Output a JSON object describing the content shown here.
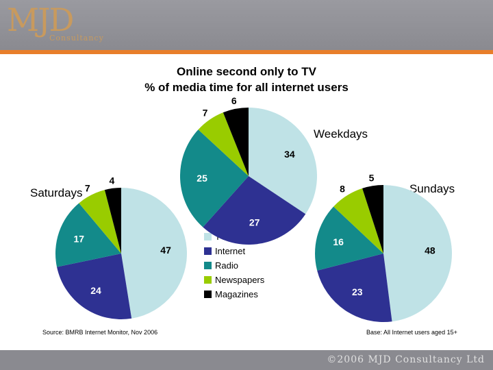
{
  "header": {
    "logo_main": "MJD",
    "logo_sub": "Consultancy"
  },
  "titles": {
    "line1": "Online second only to TV",
    "line2": "% of media time for all internet users"
  },
  "footnotes": {
    "source": "Source: BMRB Internet Monitor, Nov 2006",
    "base": "Base: All Internet users aged 15+"
  },
  "footer": {
    "copyright": "©2006 MJD Consultancy Ltd"
  },
  "colors": {
    "TV": "#bfe2e6",
    "Internet": "#2e3192",
    "Radio": "#138a8a",
    "Newspapers": "#99cc00",
    "Magazines": "#000000"
  },
  "chart_data": [
    {
      "type": "pie",
      "title": "Weekdays",
      "categories": [
        "TV",
        "Internet",
        "Radio",
        "Newspapers",
        "Magazines"
      ],
      "values": [
        34,
        27,
        25,
        7,
        6
      ]
    },
    {
      "type": "pie",
      "title": "Saturdays",
      "categories": [
        "TV",
        "Internet",
        "Radio",
        "Newspapers",
        "Magazines"
      ],
      "values": [
        47,
        24,
        17,
        7,
        4
      ]
    },
    {
      "type": "pie",
      "title": "Sundays",
      "categories": [
        "TV",
        "Internet",
        "Radio",
        "Newspapers",
        "Magazines"
      ],
      "values": [
        48,
        23,
        16,
        8,
        5
      ]
    }
  ],
  "legend": {
    "items": [
      "TV",
      "Internet",
      "Radio",
      "Newspapers",
      "Magazines"
    ]
  }
}
